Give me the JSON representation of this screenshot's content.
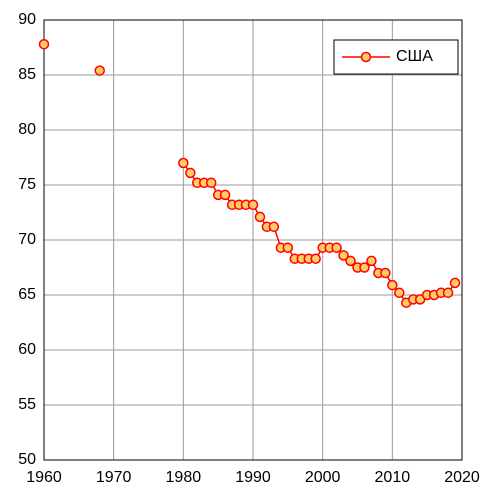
{
  "chart_data": {
    "type": "line",
    "x": [
      1960,
      null,
      1968,
      null,
      1980,
      1981,
      1982,
      1983,
      1984,
      1985,
      1986,
      1987,
      1988,
      1989,
      1990,
      1991,
      1992,
      1993,
      1994,
      1995,
      1996,
      1997,
      1998,
      1999,
      2000,
      2001,
      2002,
      2003,
      2004,
      2005,
      2006,
      2007,
      2008,
      2009,
      2010,
      2011,
      2012,
      2013,
      2014,
      2015,
      2016,
      2017,
      2018,
      2019
    ],
    "series": [
      {
        "name": "США",
        "color": "#ff0000",
        "marker_color": "#ffcc66",
        "values": [
          87.8,
          null,
          85.4,
          null,
          77.0,
          76.1,
          75.2,
          75.2,
          75.2,
          74.1,
          74.1,
          73.2,
          73.2,
          73.2,
          73.2,
          72.1,
          71.2,
          71.2,
          69.3,
          69.3,
          68.3,
          68.3,
          68.3,
          68.3,
          69.3,
          69.3,
          69.3,
          68.6,
          68.1,
          67.5,
          67.5,
          68.1,
          67.0,
          67.0,
          65.9,
          65.2,
          64.3,
          64.6,
          64.6,
          65.0,
          65.0,
          65.2,
          65.2,
          66.1
        ]
      }
    ],
    "xlim": [
      1960,
      2020
    ],
    "xticks": [
      1960,
      1970,
      1980,
      1990,
      2000,
      2010,
      2020
    ],
    "ylim": [
      50,
      90
    ],
    "yticks": [
      50,
      55,
      60,
      65,
      70,
      75,
      80,
      85,
      90
    ],
    "grid": true,
    "legend": "upper right"
  }
}
